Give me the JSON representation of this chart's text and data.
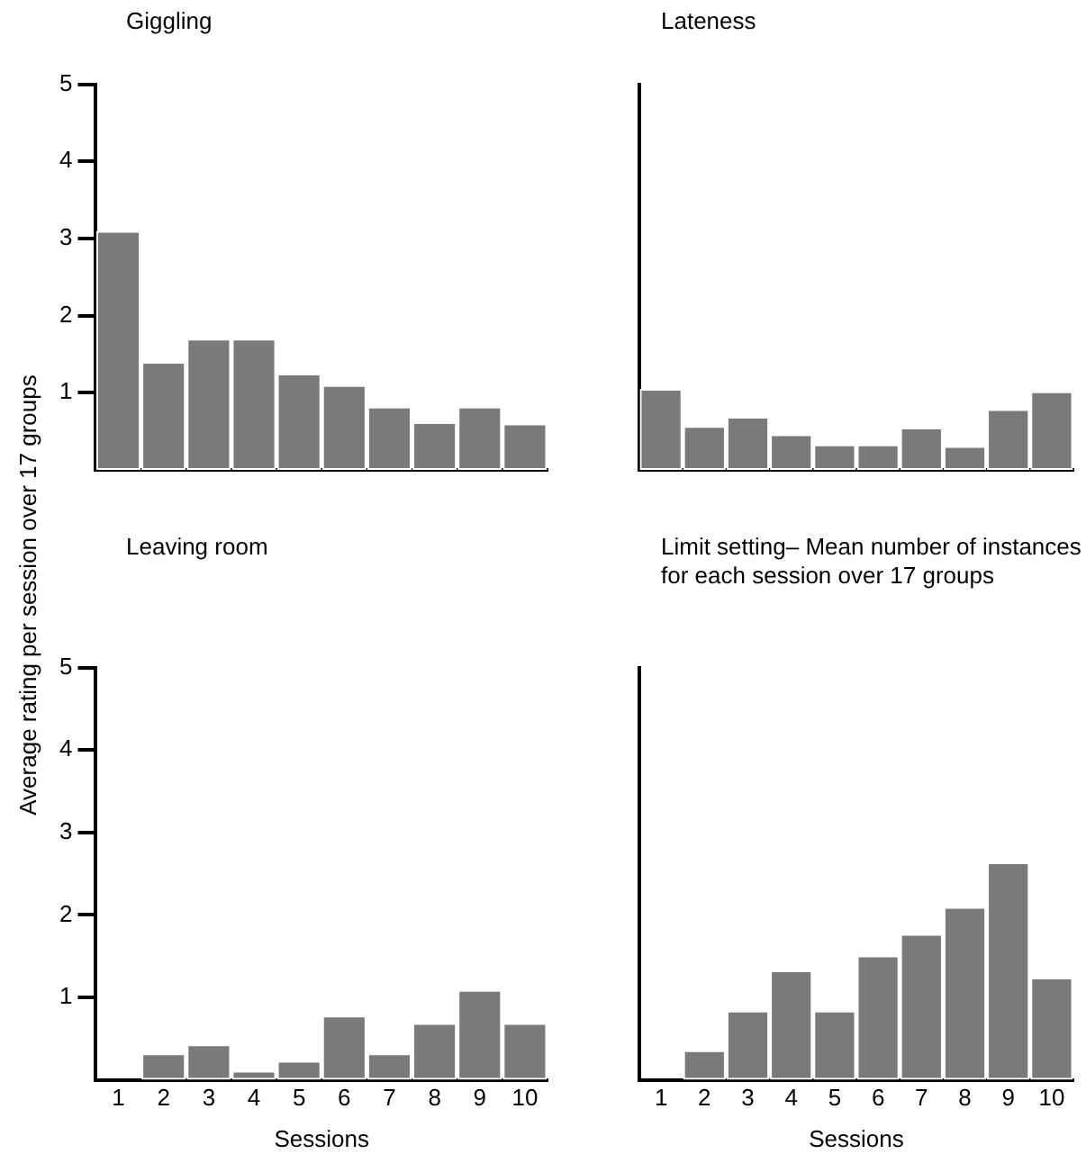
{
  "chart_data": [
    {
      "type": "bar",
      "title": "Giggling",
      "ylabel": "Average rating per session over 17 groups",
      "categories": [
        "1",
        "2",
        "3",
        "4",
        "5",
        "6",
        "7",
        "8",
        "9",
        "10"
      ],
      "series": [
        {
          "color": "#7a7a7a",
          "values": [
            3.1,
            1.4,
            1.7,
            1.7,
            1.25,
            1.1,
            0.82,
            0.62,
            0.82,
            0.6
          ]
        }
      ],
      "ylim": [
        0,
        5
      ],
      "yticks": [
        1,
        2,
        3,
        4,
        5
      ],
      "tick_labels": "y",
      "legend": false
    },
    {
      "type": "bar",
      "title": "Lateness",
      "categories": [
        "1",
        "2",
        "3",
        "4",
        "5",
        "6",
        "7",
        "8",
        "9",
        "10"
      ],
      "series": [
        {
          "color": "#7a7a7a",
          "values": [
            1.05,
            0.57,
            0.69,
            0.46,
            0.33,
            0.33,
            0.55,
            0.31,
            0.79,
            1.02
          ]
        }
      ],
      "ylim": [
        0,
        5
      ],
      "tick_labels": false,
      "legend": false
    },
    {
      "type": "bar",
      "title": "Leaving room",
      "xlabel": "Sessions",
      "categories": [
        "1",
        "2",
        "3",
        "4",
        "5",
        "6",
        "7",
        "8",
        "9",
        "10"
      ],
      "series": [
        {
          "color": "#7a7a7a",
          "values": [
            0,
            0.32,
            0.43,
            0.11,
            0.23,
            0.78,
            0.32,
            0.69,
            1.09,
            0.69
          ]
        }
      ],
      "ylim": [
        0,
        5
      ],
      "yticks": [
        1,
        2,
        3,
        4,
        5
      ],
      "legend": false
    },
    {
      "type": "bar",
      "title": "Limit setting– Mean number of instances for each session over 17 groups",
      "xlabel": "Sessions",
      "categories": [
        "1",
        "2",
        "3",
        "4",
        "5",
        "6",
        "7",
        "8",
        "9",
        "10"
      ],
      "series": [
        {
          "color": "#7a7a7a",
          "values": [
            0,
            0.36,
            0.84,
            1.33,
            0.84,
            1.51,
            1.77,
            2.1,
            2.64,
            1.24
          ]
        }
      ],
      "ylim": [
        0,
        5
      ],
      "tick_labels": "x",
      "legend": false
    }
  ]
}
